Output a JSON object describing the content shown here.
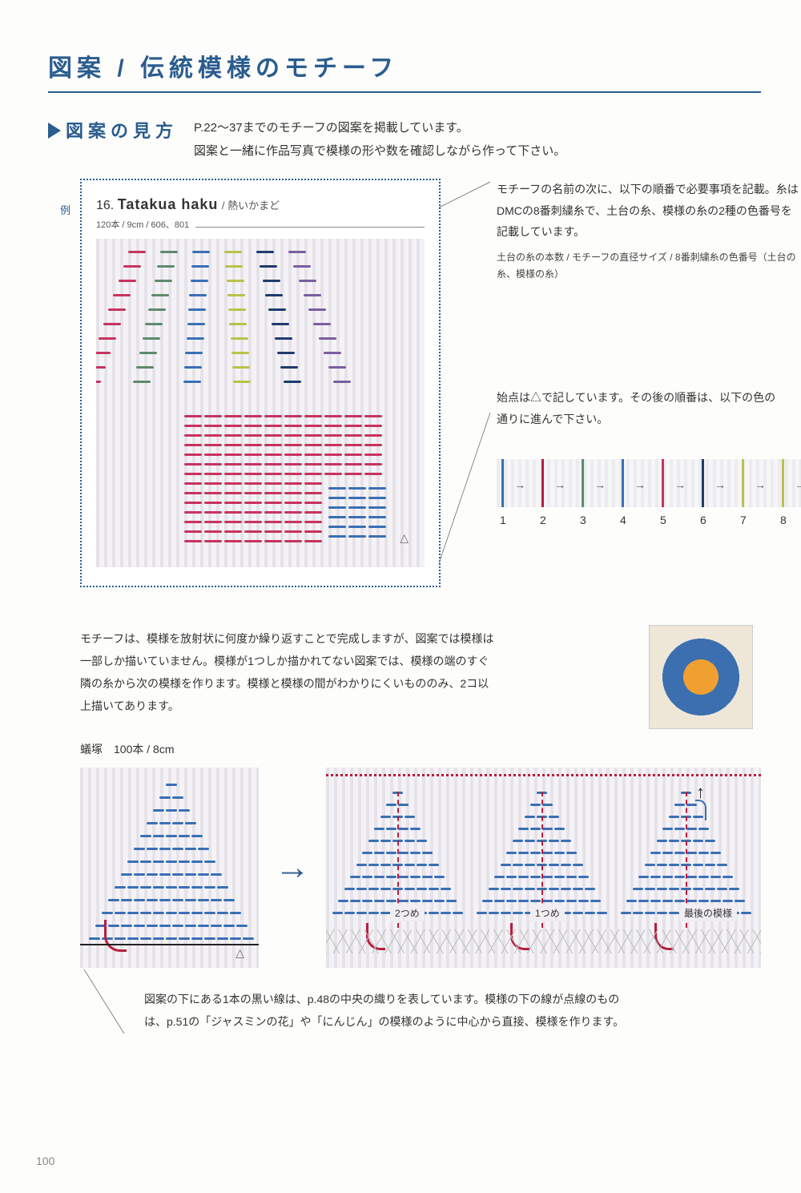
{
  "title": "図案 / 伝統模様のモチーフ",
  "subtitle": "図案の見方",
  "intro_line1": "P.22～37までのモチーフの図案を掲載しています。",
  "intro_line2": "図案と一緒に作品写真で模様の形や数を確認しながら作って下さい。",
  "example_label": "例",
  "motif": {
    "number": "16.",
    "name": "Tatakua haku",
    "sub": "/ 熱いかまど",
    "specs": "120本 / 9cm / 606、801"
  },
  "right_note_main": "モチーフの名前の次に、以下の順番で必要事項を記載。糸はDMCの8番刺繍糸で、土台の糸、模様の糸の2種の色番号を記載しています。",
  "right_note_small": "土台の糸の本数 / モチーフの直径サイズ / 8番刺繍糸の色番号（土台の糸、模様の糸）",
  "start_note": "始点は△で記しています。その後の順番は、以下の色の通りに進んで下さい。",
  "sequence": [
    {
      "num": "1",
      "color": "#3a6fb5"
    },
    {
      "num": "2",
      "color": "#b81e3c"
    },
    {
      "num": "3",
      "color": "#5e8a6e"
    },
    {
      "num": "4",
      "color": "#3a6fb5"
    },
    {
      "num": "5",
      "color": "#c7335e"
    },
    {
      "num": "6",
      "color": "#1f3a6e"
    },
    {
      "num": "7",
      "color": "#b9c24a"
    },
    {
      "num": "8",
      "color": "#b9c24a"
    }
  ],
  "mid_text": "モチーフは、模様を放射状に何度か繰り返すことで完成しますが、図案では模様は一部しか描いていません。模様が1つしか描かれてない図案では、模様の端のすぐ隣の糸から次の模様を作ります。模様と模様の間がわかりにくいもののみ、2コ以上描いてあります。",
  "example2_label": "蟻塚　100本 / 8cm",
  "pattern3_labels": {
    "second": "2つめ",
    "first": "1つめ",
    "last": "最後の模様"
  },
  "arrow": "→",
  "up_arrow": "↑",
  "triangle": "△",
  "bottom_note": "図案の下にある1本の黒い線は、p.48の中央の織りを表しています。模様の下の線が点線のものは、p.51の「ジャスミンの花」や「にんじん」の模様のように中心から直接、模様を作ります。",
  "page_number": "100",
  "pattern1_stitches": {
    "smoke_colors": [
      "#c7335e",
      "#5e8a6e",
      "#3a6fb5",
      "#b9c24a",
      "#1f3a6e",
      "#7a5ea0"
    ],
    "house_color": "#c7335e",
    "door_color": "#3a6fb5"
  },
  "pattern2_color": "#3a6fb5",
  "pattern2_accent": "#b81e3c"
}
